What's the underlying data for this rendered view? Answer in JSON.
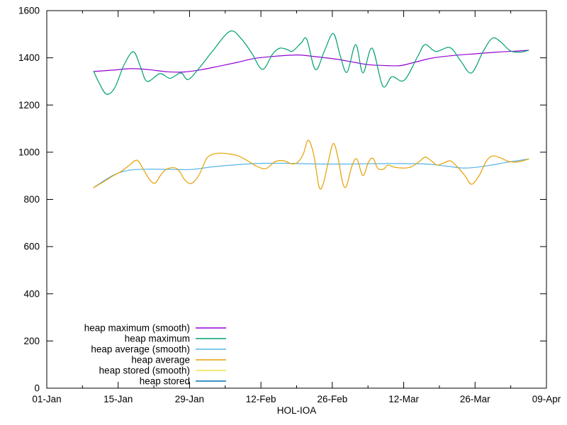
{
  "chart_data": {
    "type": "line",
    "title": "",
    "xlabel": "HOL-IOA",
    "ylabel": "",
    "background": "#ffffff",
    "border_color": "#000000",
    "grid": false,
    "legend_position": "inside-bottom-left",
    "x_axis": {
      "kind": "time-days-since-01-Jan",
      "range_days": [
        0,
        98
      ],
      "major_tick_interval_days": 14,
      "minor_tick_interval_days": 7,
      "major_ticks": [
        {
          "day": 0,
          "label": "01-Jan"
        },
        {
          "day": 14,
          "label": "15-Jan"
        },
        {
          "day": 28,
          "label": "29-Jan"
        },
        {
          "day": 42,
          "label": "12-Feb"
        },
        {
          "day": 56,
          "label": "26-Feb"
        },
        {
          "day": 70,
          "label": "12-Mar"
        },
        {
          "day": 84,
          "label": "26-Mar"
        },
        {
          "day": 98,
          "label": "09-Apr"
        }
      ]
    },
    "y_axis": {
      "range": [
        0,
        1600
      ],
      "tick_interval": 200,
      "ticks": [
        0,
        200,
        400,
        600,
        800,
        1000,
        1200,
        1400,
        1600
      ]
    },
    "series": [
      {
        "name": "heap maximum (smooth)",
        "color": "#9400d3",
        "style": "smooth",
        "points": [
          [
            9.2,
            1342
          ],
          [
            13.1,
            1348
          ],
          [
            16.5,
            1354
          ],
          [
            20.0,
            1350
          ],
          [
            23.5,
            1341
          ],
          [
            27.0,
            1340
          ],
          [
            30.4,
            1350
          ],
          [
            33.9,
            1365
          ],
          [
            37.4,
            1381
          ],
          [
            40.9,
            1398
          ],
          [
            45.0,
            1407
          ],
          [
            49.2,
            1412
          ],
          [
            52.7,
            1405
          ],
          [
            56.9,
            1394
          ],
          [
            60.3,
            1381
          ],
          [
            63.1,
            1371
          ],
          [
            66.6,
            1367
          ],
          [
            69.4,
            1367
          ],
          [
            72.1,
            1381
          ],
          [
            75.6,
            1399
          ],
          [
            79.8,
            1410
          ],
          [
            84.0,
            1417
          ],
          [
            88.1,
            1424
          ],
          [
            91.6,
            1428
          ],
          [
            94.5,
            1432
          ]
        ]
      },
      {
        "name": "heap maximum",
        "color": "#009e73",
        "style": "raw",
        "points": [
          [
            9.2,
            1342
          ],
          [
            10.3,
            1292
          ],
          [
            11.7,
            1246
          ],
          [
            13.3,
            1272
          ],
          [
            15.2,
            1372
          ],
          [
            17.0,
            1426
          ],
          [
            18.4,
            1360
          ],
          [
            19.7,
            1300
          ],
          [
            22.2,
            1333
          ],
          [
            24.2,
            1313
          ],
          [
            26.3,
            1336
          ],
          [
            27.7,
            1308
          ],
          [
            29.8,
            1354
          ],
          [
            32.5,
            1428
          ],
          [
            35.9,
            1512
          ],
          [
            38.1,
            1482
          ],
          [
            40.2,
            1420
          ],
          [
            42.3,
            1351
          ],
          [
            44.3,
            1416
          ],
          [
            45.7,
            1441
          ],
          [
            47.3,
            1434
          ],
          [
            48.2,
            1428
          ],
          [
            49.9,
            1463
          ],
          [
            51.0,
            1478
          ],
          [
            52.7,
            1350
          ],
          [
            54.5,
            1432
          ],
          [
            56.2,
            1503
          ],
          [
            57.6,
            1405
          ],
          [
            58.9,
            1339
          ],
          [
            60.6,
            1456
          ],
          [
            62.0,
            1336
          ],
          [
            63.8,
            1441
          ],
          [
            65.9,
            1280
          ],
          [
            67.7,
            1320
          ],
          [
            70.1,
            1305
          ],
          [
            72.8,
            1408
          ],
          [
            74.2,
            1456
          ],
          [
            76.3,
            1427
          ],
          [
            79.1,
            1443
          ],
          [
            81.2,
            1386
          ],
          [
            83.3,
            1336
          ],
          [
            85.6,
            1428
          ],
          [
            87.4,
            1483
          ],
          [
            89.0,
            1468
          ],
          [
            90.9,
            1430
          ],
          [
            92.9,
            1424
          ],
          [
            94.5,
            1432
          ]
        ]
      },
      {
        "name": "heap average (smooth)",
        "color": "#56b4e9",
        "style": "smooth",
        "points": [
          [
            9.2,
            850
          ],
          [
            11.7,
            886
          ],
          [
            13.8,
            910
          ],
          [
            16.5,
            925
          ],
          [
            20.0,
            928
          ],
          [
            24.2,
            927
          ],
          [
            28.4,
            927
          ],
          [
            32.5,
            938
          ],
          [
            36.7,
            946
          ],
          [
            40.9,
            952
          ],
          [
            46.4,
            953
          ],
          [
            53.4,
            950
          ],
          [
            60.3,
            950
          ],
          [
            67.3,
            952
          ],
          [
            74.2,
            950
          ],
          [
            78.4,
            941
          ],
          [
            81.5,
            933
          ],
          [
            84.2,
            936
          ],
          [
            87.4,
            946
          ],
          [
            90.2,
            957
          ],
          [
            94.5,
            971
          ]
        ]
      },
      {
        "name": "heap average",
        "color": "#e69f00",
        "style": "raw",
        "points": [
          [
            9.2,
            850
          ],
          [
            11.0,
            873
          ],
          [
            13.1,
            901
          ],
          [
            14.7,
            920
          ],
          [
            16.1,
            943
          ],
          [
            17.7,
            966
          ],
          [
            19.0,
            925
          ],
          [
            20.3,
            880
          ],
          [
            21.3,
            870
          ],
          [
            22.5,
            908
          ],
          [
            23.8,
            931
          ],
          [
            25.6,
            929
          ],
          [
            27.1,
            882
          ],
          [
            28.4,
            868
          ],
          [
            29.9,
            905
          ],
          [
            31.4,
            975
          ],
          [
            32.9,
            993
          ],
          [
            34.3,
            996
          ],
          [
            35.9,
            992
          ],
          [
            37.5,
            985
          ],
          [
            39.5,
            962
          ],
          [
            41.4,
            938
          ],
          [
            43.0,
            931
          ],
          [
            44.8,
            960
          ],
          [
            46.4,
            964
          ],
          [
            48.0,
            951
          ],
          [
            49.2,
            957
          ],
          [
            50.3,
            992
          ],
          [
            51.3,
            1051
          ],
          [
            52.4,
            985
          ],
          [
            53.4,
            853
          ],
          [
            54.2,
            865
          ],
          [
            55.2,
            958
          ],
          [
            56.2,
            1037
          ],
          [
            57.1,
            978
          ],
          [
            58.1,
            865
          ],
          [
            58.8,
            858
          ],
          [
            59.8,
            938
          ],
          [
            60.8,
            972
          ],
          [
            62.0,
            901
          ],
          [
            63.1,
            958
          ],
          [
            64.0,
            974
          ],
          [
            64.9,
            932
          ],
          [
            66.0,
            928
          ],
          [
            66.9,
            945
          ],
          [
            68.3,
            936
          ],
          [
            70.1,
            933
          ],
          [
            71.5,
            938
          ],
          [
            73.1,
            961
          ],
          [
            74.2,
            979
          ],
          [
            75.3,
            966
          ],
          [
            76.5,
            946
          ],
          [
            77.9,
            955
          ],
          [
            79.2,
            963
          ],
          [
            80.6,
            936
          ],
          [
            82.0,
            901
          ],
          [
            83.3,
            864
          ],
          [
            84.8,
            901
          ],
          [
            86.2,
            962
          ],
          [
            87.4,
            984
          ],
          [
            89.0,
            976
          ],
          [
            90.4,
            962
          ],
          [
            91.8,
            958
          ],
          [
            93.1,
            962
          ],
          [
            94.5,
            971
          ]
        ]
      },
      {
        "name": "heap stored (smooth)",
        "color": "#f0e442",
        "style": "smooth",
        "points": []
      },
      {
        "name": "heap stored",
        "color": "#0072b2",
        "style": "raw",
        "points": []
      }
    ]
  }
}
